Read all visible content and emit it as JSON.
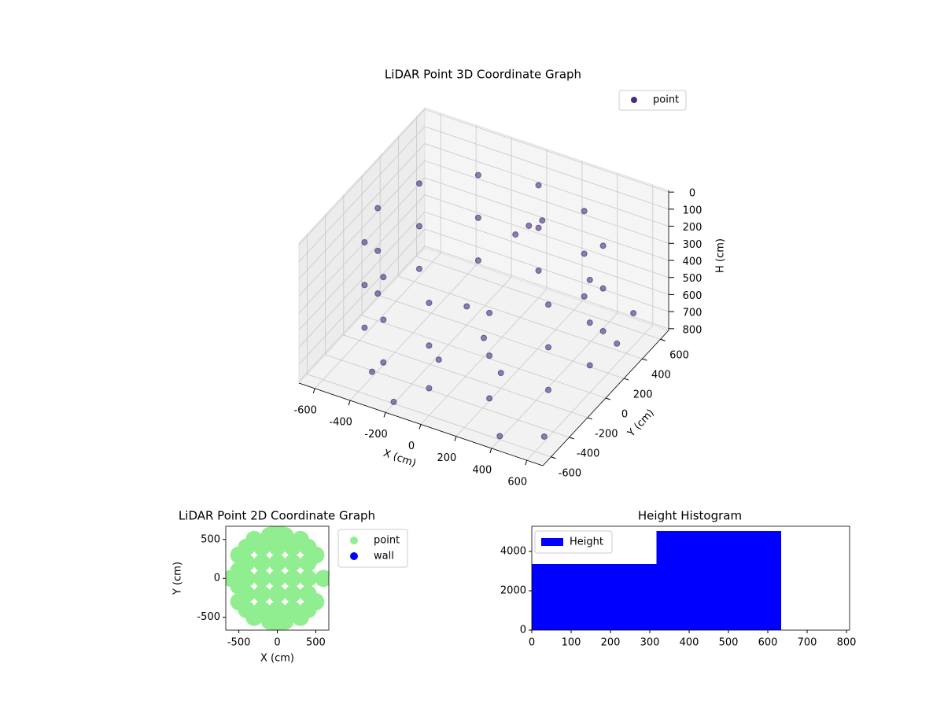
{
  "chart_data": [
    {
      "type": "scatter3d",
      "title": "LiDAR Point 3D Coordinate Graph",
      "x_label": "X (cm)",
      "y_label": "Y (cm)",
      "z_label": "H (cm)",
      "xlim": [
        -690,
        690
      ],
      "ylim": [
        -690,
        690
      ],
      "zlim": [
        -10,
        810
      ],
      "z_inverted": true,
      "xticks": [
        -600,
        -400,
        -200,
        0,
        200,
        400,
        600
      ],
      "yticks": [
        -600,
        -400,
        -200,
        0,
        200,
        400,
        600
      ],
      "zticks": [
        0,
        100,
        200,
        300,
        400,
        500,
        600,
        700,
        800
      ],
      "grid": true,
      "legend": "upper right",
      "series": [
        {
          "name": "point",
          "color": "#472d7b",
          "x": [
            600,
            520,
            300,
            0,
            -300,
            -520,
            -600,
            -520,
            -300,
            0,
            300,
            520,
            600,
            520,
            300,
            0,
            -300,
            -520,
            -600,
            -520,
            -300,
            0,
            300,
            520,
            600,
            520,
            300,
            0,
            -300,
            -520,
            -600,
            -520,
            -300,
            0,
            300,
            520,
            0,
            200,
            -200,
            -100,
            100,
            50,
            150,
            -400,
            -200,
            400,
            600,
            650,
            640
          ],
          "y": [
            0,
            300,
            520,
            600,
            520,
            300,
            0,
            -300,
            -520,
            -600,
            -520,
            -300,
            0,
            300,
            520,
            600,
            520,
            300,
            0,
            -300,
            -520,
            -600,
            -520,
            -300,
            0,
            300,
            520,
            600,
            520,
            300,
            0,
            -300,
            -520,
            -600,
            -520,
            -300,
            0,
            -200,
            200,
            -300,
            300,
            250,
            350,
            -450,
            -600,
            -600,
            -500,
            200,
            400
          ],
          "z": [
            150,
            150,
            150,
            150,
            150,
            150,
            150,
            150,
            150,
            150,
            150,
            150,
            400,
            400,
            400,
            400,
            400,
            400,
            400,
            400,
            400,
            400,
            400,
            400,
            650,
            650,
            650,
            650,
            650,
            650,
            650,
            650,
            650,
            650,
            650,
            650,
            700,
            720,
            700,
            690,
            180,
            220,
            160,
            780,
            800,
            790,
            780,
            620,
            560
          ]
        }
      ]
    },
    {
      "type": "scatter",
      "title": "LiDAR Point 2D Coordinate Graph",
      "x_label": "X (cm)",
      "y_label": "Y (cm)",
      "xlim": [
        -670,
        670
      ],
      "ylim": [
        -665,
        670
      ],
      "xticks": [
        -500,
        0,
        500
      ],
      "yticks": [
        -500,
        0,
        500
      ],
      "legend": "outside upper left",
      "series": [
        {
          "name": "point",
          "color": "#90ee90",
          "x": [
            -600,
            -400,
            -400,
            -400,
            -400,
            -400,
            -200,
            -200,
            -200,
            -200,
            -200,
            0,
            0,
            0,
            0,
            0,
            0,
            0,
            200,
            200,
            200,
            200,
            200,
            400,
            400,
            400,
            400,
            400,
            600,
            -500,
            -500,
            -300,
            -300,
            300,
            500,
            300,
            500,
            -500,
            -500,
            -100,
            -100,
            100,
            100
          ],
          "values": [
            0,
            -400,
            -200,
            0,
            200,
            400,
            -400,
            -200,
            0,
            200,
            400,
            -600,
            -400,
            -200,
            0,
            200,
            400,
            600,
            -400,
            -200,
            0,
            200,
            400,
            -400,
            -200,
            0,
            200,
            400,
            0,
            300,
            -300,
            500,
            -500,
            500,
            300,
            -500,
            -300,
            100,
            -100,
            -550,
            550,
            -550,
            550
          ]
        },
        {
          "name": "wall",
          "color": "#0000ff",
          "x": [],
          "values": []
        }
      ]
    },
    {
      "type": "histogram",
      "title": "Height Histogram",
      "xlim": [
        0,
        808
      ],
      "ylim": [
        0,
        5280
      ],
      "xticks": [
        0,
        100,
        200,
        300,
        400,
        500,
        600,
        700,
        800
      ],
      "yticks": [
        0,
        2000,
        4000
      ],
      "legend": "upper left",
      "series": [
        {
          "name": "Height",
          "color": "#0000ff",
          "bins": [
            0,
            317,
            634
          ],
          "values": [
            3360,
            5040
          ]
        }
      ]
    }
  ]
}
